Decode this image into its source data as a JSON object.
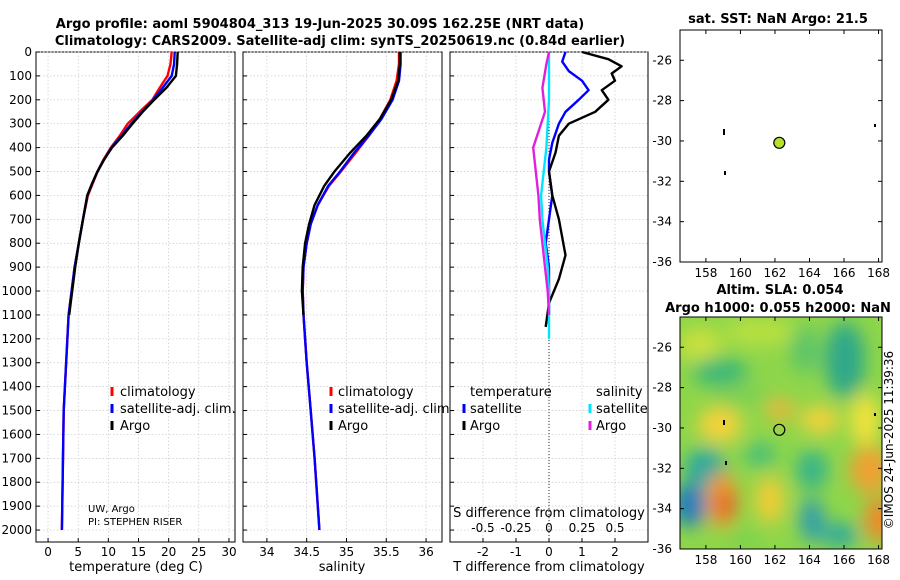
{
  "header": {
    "title_line1": "Argo profile: aoml 5904804_313 19-Jun-2025 30.09S 162.25E (NRT data)",
    "title_line2": "Climatology: CARS2009. Satellite-adj clim: synTS_20250619.nc (0.84d earlier)"
  },
  "colors": {
    "climatology": "#ff0000",
    "satellite": "#0000ff",
    "argo": "#000000",
    "sal_satellite": "#00e5ff",
    "sal_argo": "#e020e0"
  },
  "legend": {
    "climatology": "climatology",
    "satellite": "satellite-adj. clim.",
    "argo": "Argo",
    "diff_temperature": "temperature",
    "diff_salinity": "salinity",
    "diff_satellite": "satellite",
    "diff_argo": "Argo"
  },
  "credits": {
    "line1": "UW, Argo",
    "line2": "PI: STEPHEN RISER",
    "imos": "©IMOS 24-Jun-2025 11:39:36"
  },
  "sst_map": {
    "title": "sat. SST: NaN Argo: 21.5"
  },
  "sla_map": {
    "title_line1": "Altim. SLA: 0.054",
    "title_line2": "Argo h1000: 0.055 h2000: NaN"
  },
  "chart_data": [
    {
      "type": "line",
      "name": "temperature-profile",
      "xlabel": "temperature (deg C)",
      "ylabel": "",
      "xlim": [
        -2,
        31
      ],
      "ylim": [
        0,
        2050
      ],
      "y_inverted": true,
      "xticks": [
        "0",
        "5",
        "10",
        "15",
        "20",
        "25",
        "30"
      ],
      "yticks": [
        "0",
        "100",
        "200",
        "300",
        "400",
        "500",
        "600",
        "700",
        "800",
        "900",
        "1000",
        "1100",
        "1200",
        "1300",
        "1400",
        "1500",
        "1600",
        "1700",
        "1800",
        "1900",
        "2000"
      ],
      "grid": true,
      "series": [
        {
          "name": "climatology",
          "x": [
            20.5,
            20.3,
            19.8,
            18.5,
            17.3,
            15.2,
            13.2,
            11.9,
            10.4,
            9.2,
            8.2,
            7.4,
            6.6,
            5.8,
            5.1,
            4.4,
            3.4,
            2.6,
            2.3
          ],
          "y": [
            0,
            50,
            100,
            150,
            200,
            250,
            300,
            350,
            400,
            450,
            500,
            550,
            600,
            700,
            800,
            900,
            1100,
            1500,
            2000
          ]
        },
        {
          "name": "satellite-adj. clim.",
          "x": [
            21.0,
            20.9,
            20.5,
            19.0,
            17.4,
            15.6,
            13.8,
            12.2,
            10.5,
            9.3,
            8.2,
            7.3,
            6.5,
            5.8,
            5.1,
            4.4,
            3.4,
            2.6,
            2.3
          ],
          "y": [
            0,
            50,
            100,
            150,
            200,
            250,
            300,
            350,
            400,
            450,
            500,
            550,
            600,
            700,
            800,
            900,
            1100,
            1500,
            2000
          ]
        },
        {
          "name": "Argo",
          "x": [
            21.5,
            21.4,
            21.2,
            19.6,
            17.6,
            15.7,
            14.0,
            12.4,
            10.6,
            9.3,
            8.2,
            7.3,
            6.5,
            5.8,
            5.1,
            4.5,
            3.5
          ],
          "y": [
            0,
            50,
            100,
            150,
            200,
            250,
            300,
            350,
            400,
            450,
            500,
            550,
            600,
            700,
            800,
            900,
            1100
          ]
        }
      ]
    },
    {
      "type": "line",
      "name": "salinity-profile",
      "xlabel": "salinity",
      "ylabel": "",
      "xlim": [
        33.7,
        36.2
      ],
      "ylim": [
        0,
        2050
      ],
      "y_inverted": true,
      "xticks": [
        "34",
        "34.5",
        "35",
        "35.5",
        "36"
      ],
      "grid": true,
      "series": [
        {
          "name": "climatology",
          "x": [
            35.66,
            35.66,
            35.63,
            35.55,
            35.42,
            35.28,
            35.12,
            34.93,
            34.78,
            34.64,
            34.55,
            34.5,
            34.46,
            34.45,
            34.46,
            34.5,
            34.55,
            34.6,
            34.66
          ],
          "y": [
            0,
            50,
            120,
            200,
            280,
            350,
            420,
            500,
            560,
            640,
            720,
            800,
            900,
            1000,
            1100,
            1300,
            1500,
            1700,
            2000
          ]
        },
        {
          "name": "satellite-adj. clim.",
          "x": [
            35.68,
            35.68,
            35.66,
            35.58,
            35.44,
            35.28,
            35.1,
            34.92,
            34.77,
            34.64,
            34.55,
            34.5,
            34.46,
            34.45,
            34.46,
            34.5,
            34.55,
            34.6,
            34.66
          ],
          "y": [
            0,
            50,
            120,
            200,
            280,
            350,
            420,
            500,
            560,
            640,
            720,
            800,
            900,
            1000,
            1100,
            1300,
            1500,
            1700,
            2000
          ]
        },
        {
          "name": "Argo",
          "x": [
            35.67,
            35.67,
            35.65,
            35.56,
            35.42,
            35.25,
            35.05,
            34.85,
            34.72,
            34.6,
            34.53,
            34.48,
            34.45,
            34.44,
            34.46
          ],
          "y": [
            0,
            50,
            120,
            200,
            280,
            350,
            420,
            500,
            560,
            640,
            720,
            800,
            900,
            1000,
            1100
          ]
        }
      ]
    },
    {
      "type": "line",
      "name": "difference-profile",
      "xlabel": "T difference from climatology",
      "x2label": "S difference from climatology",
      "xlim": [
        -3,
        3
      ],
      "x2lim": [
        -0.75,
        0.75
      ],
      "ylim": [
        0,
        2050
      ],
      "y_inverted": true,
      "xticks": [
        "-2",
        "-1",
        "0",
        "1",
        "2"
      ],
      "x2ticks": [
        "-0.5",
        "-0.25",
        "0",
        "0.25",
        "0.5"
      ],
      "grid": true,
      "series": [
        {
          "name": "T satellite",
          "axis": "T",
          "x": [
            0.5,
            0.4,
            0.6,
            1.0,
            1.2,
            0.9,
            0.5,
            0.3,
            0.1,
            0.0,
            0.0,
            0.1,
            0.0,
            -0.1,
            0.0,
            0.0,
            0.0
          ],
          "y": [
            0,
            40,
            80,
            120,
            160,
            200,
            250,
            300,
            380,
            450,
            500,
            600,
            700,
            800,
            900,
            1000,
            1100
          ]
        },
        {
          "name": "T Argo",
          "axis": "T",
          "x": [
            1.0,
            1.8,
            2.2,
            1.9,
            2.0,
            1.6,
            1.8,
            1.4,
            0.6,
            0.3,
            0.2,
            0.0,
            0.1,
            0.3,
            0.5,
            0.3,
            0.0,
            -0.1
          ],
          "y": [
            0,
            30,
            60,
            90,
            120,
            160,
            200,
            250,
            300,
            350,
            420,
            500,
            600,
            700,
            850,
            950,
            1050,
            1150
          ]
        },
        {
          "name": "S satellite",
          "axis": "S",
          "x": [
            0.0,
            0.0,
            0.0,
            -0.01,
            -0.02,
            -0.04,
            -0.06,
            -0.05,
            -0.03,
            -0.01,
            0.0,
            0.0,
            0.0
          ],
          "y": [
            0,
            100,
            200,
            300,
            400,
            500,
            600,
            700,
            800,
            900,
            1000,
            1100,
            1200
          ]
        },
        {
          "name": "S Argo",
          "axis": "S",
          "x": [
            0.0,
            -0.02,
            -0.05,
            -0.03,
            -0.09,
            -0.12,
            -0.1,
            -0.08,
            -0.07,
            -0.05,
            -0.03,
            -0.01,
            0.0
          ],
          "y": [
            0,
            50,
            150,
            250,
            350,
            400,
            500,
            600,
            700,
            800,
            900,
            1000,
            1100
          ]
        }
      ]
    },
    {
      "type": "scatter",
      "name": "sst-map",
      "title": "sat. SST: NaN Argo: 21.5",
      "xlim": [
        156.5,
        168.2
      ],
      "ylim": [
        -36,
        -24.5
      ],
      "xticks": [],
      "yticks": [
        "-26",
        "-28",
        "-30",
        "-32",
        "-34",
        "-36"
      ],
      "points": [
        {
          "label": "Argo float",
          "x": 162.25,
          "y": -30.09
        }
      ]
    },
    {
      "type": "heatmap",
      "name": "sla-map",
      "title": "Altim. SLA: 0.054",
      "subtitle": "Argo h1000: 0.055 h2000: NaN",
      "xlim": [
        156.5,
        168.2
      ],
      "ylim": [
        -36,
        -24.5
      ],
      "xticks": [
        "158",
        "160",
        "162",
        "164",
        "166",
        "168"
      ],
      "yticks": [
        "-26",
        "-28",
        "-30",
        "-32",
        "-34",
        "-36"
      ],
      "points": [
        {
          "label": "Argo float",
          "x": 162.25,
          "y": -30.09
        }
      ]
    }
  ]
}
